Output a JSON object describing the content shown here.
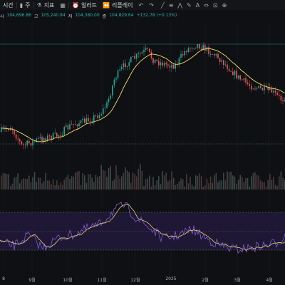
{
  "toolbar": {
    "timeframe_label": "시간",
    "interval_label": "주",
    "indicators_label": "지표",
    "alert_label": "얼러트",
    "replay_label": "리플레이"
  },
  "ohlc": {
    "open_label": "시",
    "open": "104,696.86",
    "high_label": "고",
    "high": "105,240.84",
    "low_label": "저",
    "low": "104,380.00",
    "close_label": "종",
    "close": "104,829.64",
    "change": "+132.78 (+0.13%)"
  },
  "xaxis_labels": [
    "8",
    "9월",
    "10월",
    "11월",
    "12월",
    "2025",
    "2월",
    "3월",
    "4월"
  ],
  "colors": {
    "up": "#26a69a",
    "down": "#ef5350",
    "ma": "#f0e26a",
    "rsi": "#7b5cd6",
    "rsi_ma": "#e8d36a",
    "rsi_band": "#231a3d"
  },
  "chart_data": {
    "type": "candlestick",
    "series": [
      {
        "name": "price"
      },
      {
        "name": "volume"
      },
      {
        "name": "rsi"
      }
    ]
  }
}
